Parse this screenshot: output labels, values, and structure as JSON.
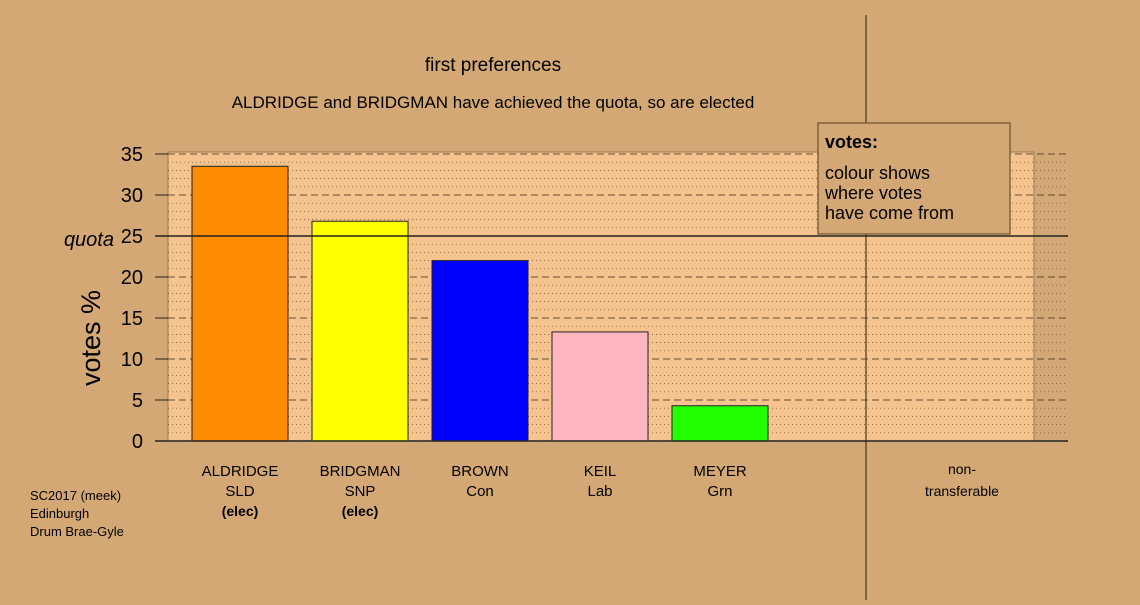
{
  "chart_data": {
    "type": "bar",
    "title": "first preferences",
    "subtitle": "ALDRIDGE and BRIDGMAN have achieved the quota, so are elected",
    "ylabel": "votes %",
    "ylim": [
      0,
      35
    ],
    "yticks": [
      0,
      5,
      10,
      15,
      20,
      25,
      30,
      35
    ],
    "quota": 25,
    "quota_label": "quota",
    "categories": [
      {
        "name": "ALDRIDGE",
        "party": "SLD",
        "elected_label": "(elec)",
        "value": 33.5,
        "color": "#ff8c00"
      },
      {
        "name": "BRIDGMAN",
        "party": "SNP",
        "elected_label": "(elec)",
        "value": 26.8,
        "color": "#ffff00"
      },
      {
        "name": "BROWN",
        "party": "Con",
        "elected_label": "",
        "value": 22.0,
        "color": "#0000ff"
      },
      {
        "name": "KEIL",
        "party": "Lab",
        "elected_label": "",
        "value": 13.3,
        "color": "#ffb6c1"
      },
      {
        "name": "MEYER",
        "party": "Grn",
        "elected_label": "",
        "value": 4.3,
        "color": "#22ff00"
      }
    ],
    "nontransferable": {
      "line1": "non-",
      "line2": "transferable",
      "value": 0
    },
    "legend": {
      "title": "votes:",
      "lines": [
        "colour shows",
        "where votes",
        "have come from"
      ],
      "placement": "top-right"
    },
    "footer": [
      "SC2017 (meek)",
      "Edinburgh",
      "Drum Brae-Gyle"
    ],
    "grid": true,
    "colors": {
      "background": "#d4a875",
      "plot_fill": "#f5c38d"
    }
  }
}
